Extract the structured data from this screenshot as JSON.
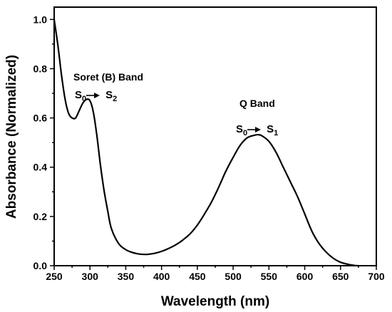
{
  "chart_data": {
    "type": "line",
    "title": "",
    "xlabel": "Wavelength (nm)",
    "ylabel": "Absorbance (Normalized)",
    "xlim": [
      250,
      700
    ],
    "ylim": [
      0,
      1.05
    ],
    "x_ticks": [
      250,
      300,
      350,
      400,
      450,
      500,
      550,
      600,
      650,
      700
    ],
    "x_tick_labels": [
      "250",
      "300",
      "350",
      "400",
      "450",
      "500",
      "550",
      "600",
      "650",
      "700"
    ],
    "y_ticks": [
      0.0,
      0.2,
      0.4,
      0.6,
      0.8,
      1.0
    ],
    "y_tick_labels": [
      "0.0",
      "0.2",
      "0.4",
      "0.6",
      "0.8",
      "1.0"
    ],
    "grid": false,
    "legend": "none",
    "series": [
      {
        "color": "#000000",
        "x": [
          250,
          255,
          260,
          265,
          270,
          275,
          280,
          285,
          290,
          295,
          300,
          305,
          310,
          315,
          320,
          325,
          330,
          340,
          350,
          360,
          370,
          380,
          390,
          400,
          410,
          420,
          430,
          440,
          450,
          460,
          470,
          480,
          490,
          500,
          510,
          520,
          530,
          535,
          540,
          550,
          560,
          570,
          580,
          590,
          600,
          610,
          620,
          630,
          640,
          650,
          660,
          670,
          675
        ],
        "y": [
          1.0,
          0.9,
          0.78,
          0.68,
          0.62,
          0.6,
          0.6,
          0.63,
          0.66,
          0.675,
          0.67,
          0.62,
          0.52,
          0.4,
          0.3,
          0.22,
          0.15,
          0.09,
          0.065,
          0.053,
          0.047,
          0.046,
          0.05,
          0.058,
          0.07,
          0.085,
          0.105,
          0.13,
          0.165,
          0.21,
          0.26,
          0.32,
          0.385,
          0.44,
          0.49,
          0.52,
          0.53,
          0.532,
          0.528,
          0.505,
          0.46,
          0.4,
          0.34,
          0.28,
          0.21,
          0.14,
          0.09,
          0.055,
          0.03,
          0.014,
          0.006,
          0.001,
          0.0
        ]
      }
    ],
    "annotations": [
      {
        "id": "soret",
        "title": "Soret (B) Band",
        "transition": [
          "S",
          "0",
          "S",
          "2"
        ]
      },
      {
        "id": "q",
        "title": "Q Band",
        "transition": [
          "S",
          "0",
          "S",
          "1"
        ]
      }
    ]
  }
}
